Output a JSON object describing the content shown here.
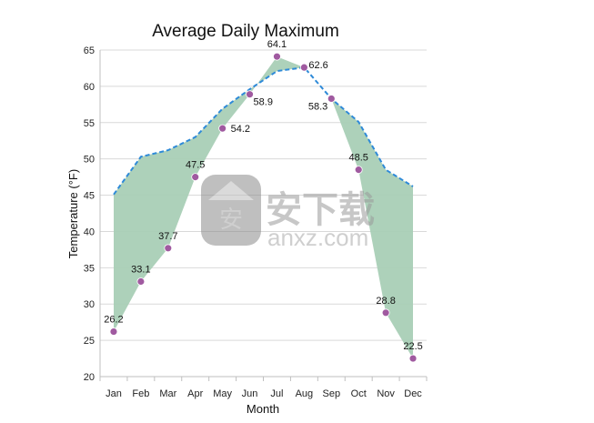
{
  "chart_data": {
    "type": "area",
    "title": "Average Daily Maximum",
    "xlabel": "Month",
    "ylabel": "Temperature (°F)",
    "categories": [
      "Jan",
      "Feb",
      "Mar",
      "Apr",
      "May",
      "Jun",
      "Jul",
      "Aug",
      "Sep",
      "Oct",
      "Nov",
      "Dec"
    ],
    "ylim": [
      20,
      65
    ],
    "yticks": [
      20,
      25,
      30,
      35,
      40,
      45,
      50,
      55,
      60,
      65
    ],
    "grid": true,
    "legend": "none",
    "series": [
      {
        "style": "markers",
        "color": "#a05aa0",
        "values": [
          26.2,
          33.1,
          37.7,
          47.5,
          54.2,
          58.9,
          64.1,
          62.6,
          58.3,
          48.5,
          28.8,
          22.5
        ],
        "labels": [
          "26.2",
          "33.1",
          "37.7",
          "47.5",
          "54.2",
          "58.9",
          "64.1",
          "62.6",
          "58.3",
          "48.5",
          "28.8",
          "22.5"
        ]
      },
      {
        "style": "dashed-line",
        "color": "#2e8ad8",
        "values": [
          45.1,
          50.3,
          51.2,
          53.0,
          56.9,
          59.6,
          62.1,
          62.6,
          58.3,
          55.1,
          48.5,
          46.2
        ]
      }
    ],
    "fill_between_color": "#a9cfb6"
  },
  "watermark": {
    "text": "安下载",
    "subtext": "anxz.com",
    "badge_text": "安"
  }
}
